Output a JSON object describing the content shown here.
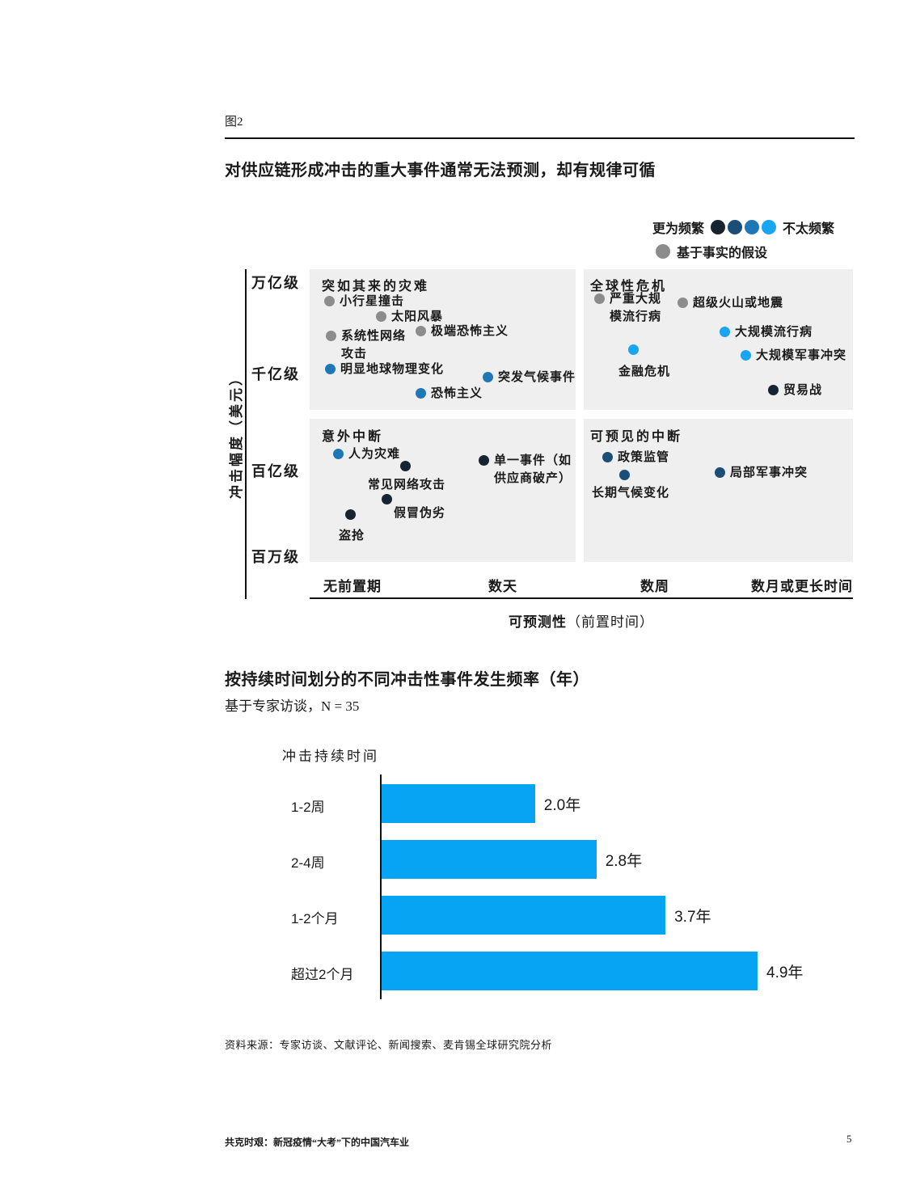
{
  "page": {
    "figure_label": "图2",
    "exhibit_title": "对供应链形成冲击的重大事件通常无法预测，却有规律可循",
    "source_note": "资料来源：专家访谈、文献评论、新闻搜索、麦肯锡全球研究院分析",
    "footer": {
      "report_title": "共克时艰：新冠疫情“大考”下的中国汽车业",
      "page_number": "5"
    }
  },
  "legend": {
    "more_frequent_label": "更为频繁",
    "less_frequent_label": "不太频繁",
    "hypothesis_label": "基于事实的假设",
    "frequency_dot_colors": [
      "#152430",
      "#1a4d78",
      "#1e78b6",
      "#19a5f0"
    ],
    "hypothesis_dot_color": "#8c8c8c"
  },
  "colors": {
    "quadrant_background": "#efefef",
    "bar_fill": "#07a4f3",
    "axis": "#111111"
  },
  "chart_data": [
    {
      "type": "scatter",
      "title": "对供应链形成冲击的重大事件通常无法预测，却有规律可循",
      "ylabel": "冲击幅度（美元）",
      "y_ticks": [
        "万亿级",
        "千亿级",
        "百亿级",
        "百万级"
      ],
      "x_ticks": [
        "无前置期",
        "数天",
        "数周",
        "数月或更长时间"
      ],
      "xlabel_main": "可预测性",
      "xlabel_sub": "（前置时间）",
      "legend_note": "点颜色表示发生频率：深色更为频繁，浅色不太频繁，灰色为基于事实的假设",
      "quadrants": [
        {
          "title": "突如其来的灾难",
          "points": [
            {
              "label": "小行星撞击",
              "frequency": "hypothesis",
              "color": "#8c8c8c",
              "pos": [
                0.04,
                0.11
              ]
            },
            {
              "label": "太阳风暴",
              "frequency": "hypothesis",
              "color": "#8c8c8c",
              "pos": [
                0.13,
                0.16
              ]
            },
            {
              "label": "系统性网络\n攻击",
              "frequency": "hypothesis",
              "color": "#8c8c8c",
              "pos": [
                0.04,
                0.23
              ]
            },
            {
              "label": "极端恐怖主义",
              "frequency": "hypothesis",
              "color": "#8c8c8c",
              "pos": [
                0.21,
                0.21
              ]
            },
            {
              "label": "明显地球物理变化",
              "frequency": "mid",
              "color": "#1e78b6",
              "pos": [
                0.04,
                0.34
              ]
            },
            {
              "label": "突发气候事件",
              "frequency": "mid",
              "color": "#1e78b6",
              "pos": [
                0.33,
                0.37
              ]
            },
            {
              "label": "恐怖主义",
              "frequency": "mid",
              "color": "#1e78b6",
              "pos": [
                0.21,
                0.43
              ]
            }
          ]
        },
        {
          "title": "全球性危机",
          "points": [
            {
              "label": "严重大规\n模流行病",
              "frequency": "hypothesis",
              "color": "#8c8c8c",
              "pos": [
                0.53,
                0.1
              ]
            },
            {
              "label": "超级火山或地震",
              "frequency": "hypothesis",
              "color": "#8c8c8c",
              "pos": [
                0.69,
                0.12
              ]
            },
            {
              "label": "大规模流行病",
              "frequency": "light",
              "color": "#19a5f0",
              "pos": [
                0.76,
                0.22
              ]
            },
            {
              "label": "金融危机",
              "frequency": "light",
              "color": "#19a5f0",
              "pos": [
                0.6,
                0.28
              ]
            },
            {
              "label": "大规模军事冲突",
              "frequency": "light",
              "color": "#19a5f0",
              "pos": [
                0.8,
                0.3
              ]
            },
            {
              "label": "贸易战",
              "frequency": "navy",
              "color": "#152430",
              "pos": [
                0.85,
                0.41
              ]
            }
          ]
        },
        {
          "title": "意外中断",
          "points": [
            {
              "label": "人为灾难",
              "frequency": "mid",
              "color": "#1e78b6",
              "pos": [
                0.05,
                0.63
              ]
            },
            {
              "label": "常见网络攻击",
              "frequency": "navy",
              "color": "#152430",
              "pos": [
                0.18,
                0.67
              ]
            },
            {
              "label": "单一事件（如\n供应商破产）",
              "frequency": "navy",
              "color": "#152430",
              "pos": [
                0.32,
                0.65
              ]
            },
            {
              "label": "假冒伪劣",
              "frequency": "navy",
              "color": "#152430",
              "pos": [
                0.14,
                0.79
              ]
            },
            {
              "label": "盗抢",
              "frequency": "navy",
              "color": "#152430",
              "pos": [
                0.08,
                0.84
              ]
            }
          ]
        },
        {
          "title": "可预见的中断",
          "points": [
            {
              "label": "政策监管",
              "frequency": "dark",
              "color": "#1a4d78",
              "pos": [
                0.55,
                0.64
              ]
            },
            {
              "label": "长期气候变化",
              "frequency": "dark",
              "color": "#1a4d78",
              "pos": [
                0.58,
                0.7
              ]
            },
            {
              "label": "局部军事冲突",
              "frequency": "dark",
              "color": "#1a4d78",
              "pos": [
                0.76,
                0.7
              ]
            }
          ]
        }
      ]
    },
    {
      "type": "bar",
      "title": "按持续时间划分的不同冲击性事件发生频率（年）",
      "subtitle": "基于专家访谈，N = 35",
      "axis_label": "冲击持续时间",
      "categories": [
        "1-2周",
        "2-4周",
        "1-2个月",
        "超过2个月"
      ],
      "values": [
        2.0,
        2.8,
        3.7,
        4.9
      ],
      "value_labels": [
        "2.0年",
        "2.8年",
        "3.7年",
        "4.9年"
      ],
      "unit": "年",
      "bar_color": "#07a4f3"
    }
  ]
}
